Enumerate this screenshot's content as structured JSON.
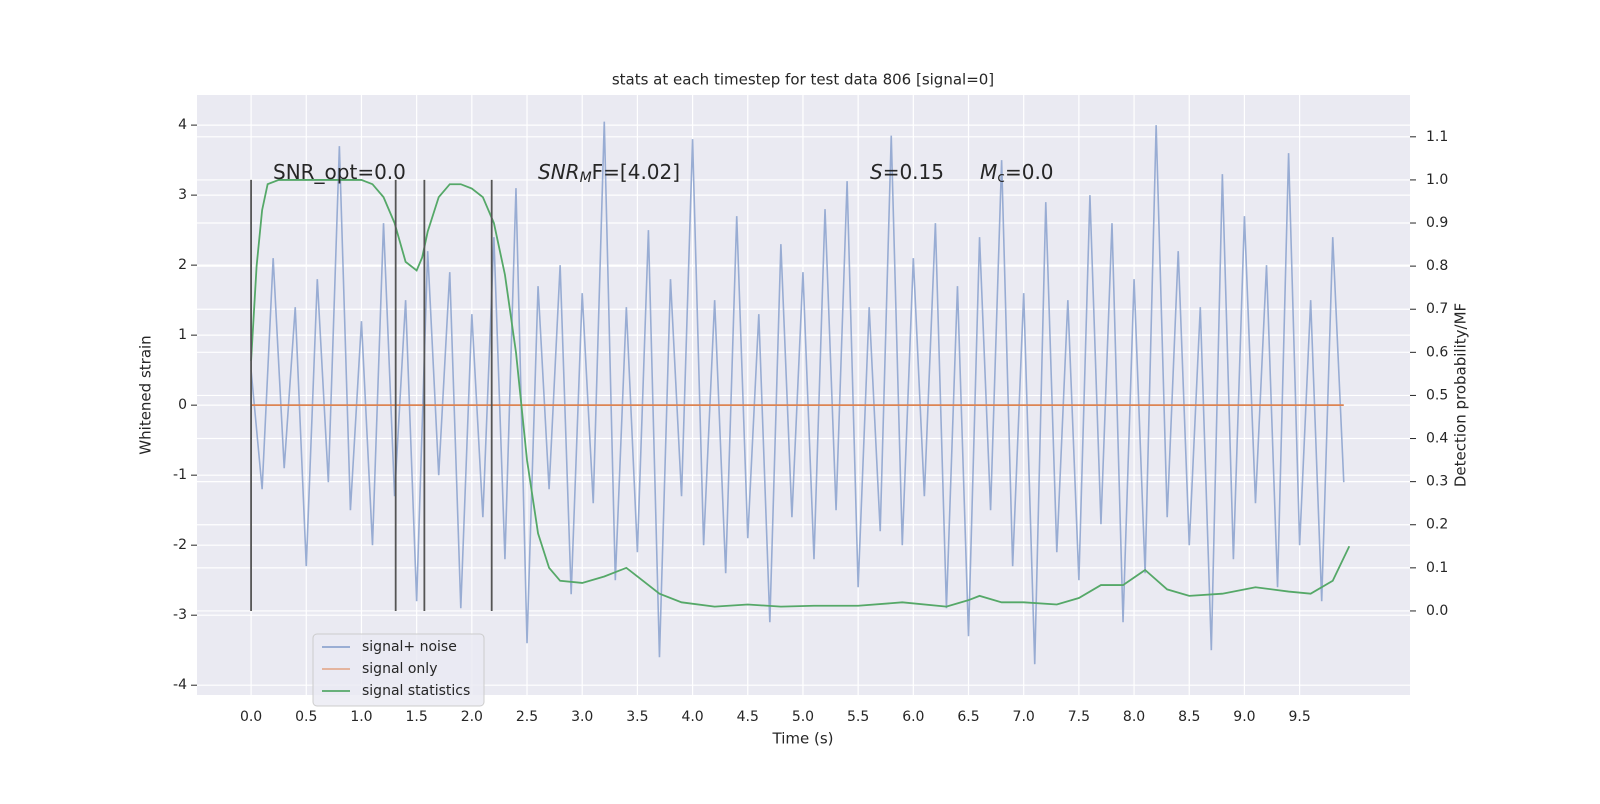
{
  "chart_data": {
    "type": "line",
    "title": "stats at each timestep for test data 806 [signal=0]",
    "xlabel": "Time (s)",
    "ylabel": "Whitened strain",
    "y2label": "Detection probability/MF",
    "xlim": [
      -0.49,
      10.5
    ],
    "ylim": [
      -4.14,
      4.43
    ],
    "y2lim": [
      -0.195,
      1.197
    ],
    "xticks": [
      {
        "value": 0,
        "label": "0.0"
      },
      0.5,
      {
        "value": 1,
        "label": "1.0"
      },
      1.5,
      {
        "value": 2,
        "label": "2.0"
      },
      2.5,
      {
        "value": 3,
        "label": "3.0"
      },
      3.5,
      {
        "value": 4,
        "label": "4.0"
      },
      4.5,
      {
        "value": 5,
        "label": "5.0"
      },
      5.5,
      {
        "value": 6,
        "label": "6.0"
      },
      6.5,
      {
        "value": 7,
        "label": "7.0"
      },
      7.5,
      {
        "value": 8,
        "label": "8.0"
      },
      8.5,
      {
        "value": 9,
        "label": "9.0"
      },
      9.5
    ],
    "yticks": [
      -4,
      -3,
      -2,
      -1,
      0,
      1,
      2,
      3,
      4
    ],
    "y2ticks": [
      {
        "value": 0,
        "label": "0.0"
      },
      0.1,
      0.2,
      0.3,
      0.4,
      0.5,
      0.6,
      0.7,
      0.8,
      0.9,
      {
        "value": 1,
        "label": "1.0"
      },
      1.1
    ],
    "grid": true,
    "legend": "lower left",
    "annotations": [
      [
        "SNR_opt=0.0"
      ],
      [
        "SNR",
        "M",
        "F=[4.02]"
      ],
      [
        "S",
        "=0.15"
      ],
      [
        "M",
        "c",
        "=0.0"
      ]
    ],
    "vlines": [
      0,
      1.31,
      1.57,
      2.18
    ],
    "vline_color": "#555555",
    "series": [
      {
        "name": "signal+ noise",
        "color": "#8fa5cf",
        "x": [
          0,
          0.1,
          0.2,
          0.3,
          0.4,
          0.5,
          0.6,
          0.7,
          0.8,
          0.9,
          1,
          1.1,
          1.2,
          1.3,
          1.4,
          1.5,
          1.6,
          1.7,
          1.8,
          1.9,
          2,
          2.1,
          2.2,
          2.3,
          2.4,
          2.5,
          2.6,
          2.7,
          2.8,
          2.9,
          3,
          3.1,
          3.2,
          3.3,
          3.4,
          3.5,
          3.6,
          3.7,
          3.8,
          3.9,
          4,
          4.1,
          4.2,
          4.3,
          4.4,
          4.5,
          4.6,
          4.7,
          4.8,
          4.9,
          5,
          5.1,
          5.2,
          5.3,
          5.4,
          5.5,
          5.6,
          5.7,
          5.8,
          5.9,
          6,
          6.1,
          6.2,
          6.3,
          6.4,
          6.5,
          6.6,
          6.7,
          6.8,
          6.9,
          7,
          7.1,
          7.2,
          7.3,
          7.4,
          7.5,
          7.6,
          7.7,
          7.8,
          7.9,
          8,
          8.1,
          8.2,
          8.3,
          8.4,
          8.5,
          8.6,
          8.7,
          8.8,
          8.9,
          9,
          9.1,
          9.2,
          9.3,
          9.4,
          9.5,
          9.6,
          9.7,
          9.8,
          9.9
        ],
        "values": [
          0.5,
          -1.2,
          2.1,
          -0.9,
          1.4,
          -2.3,
          1.8,
          -1.1,
          3.7,
          -1.5,
          1.2,
          -2.0,
          2.6,
          -1.3,
          1.5,
          -2.8,
          2.2,
          -1.0,
          1.9,
          -2.9,
          1.3,
          -1.6,
          2.4,
          -2.2,
          3.1,
          -3.4,
          1.7,
          -1.2,
          2.0,
          -2.7,
          1.6,
          -1.4,
          4.05,
          -2.5,
          1.4,
          -2.1,
          2.5,
          -3.6,
          1.8,
          -1.3,
          3.8,
          -2.0,
          1.5,
          -2.4,
          2.7,
          -1.9,
          1.3,
          -3.1,
          2.3,
          -1.6,
          1.9,
          -2.2,
          2.8,
          -1.5,
          3.2,
          -2.6,
          1.4,
          -1.8,
          3.85,
          -2.0,
          2.1,
          -1.3,
          2.6,
          -2.9,
          1.7,
          -3.3,
          2.4,
          -1.5,
          3.5,
          -2.3,
          1.6,
          -3.7,
          2.9,
          -2.1,
          1.5,
          -2.5,
          3.0,
          -1.7,
          2.6,
          -3.1,
          1.8,
          -2.4,
          4.0,
          -1.6,
          2.2,
          -2.0,
          1.4,
          -3.5,
          3.3,
          -2.2,
          2.7,
          -1.4,
          2.0,
          -2.6,
          3.6,
          -2.0,
          1.5,
          -2.8,
          2.4,
          -1.1
        ]
      },
      {
        "name": "signal only",
        "color": "#dd8452",
        "x": [
          0,
          9.9
        ],
        "values": [
          0,
          0
        ]
      },
      {
        "name": "signal statistics",
        "color": "#55a868",
        "axis": "y2",
        "x": [
          0,
          0.05,
          0.1,
          0.15,
          0.25,
          0.5,
          0.8,
          1.0,
          1.1,
          1.2,
          1.3,
          1.4,
          1.5,
          1.55,
          1.6,
          1.7,
          1.8,
          1.9,
          2.0,
          2.1,
          2.2,
          2.3,
          2.4,
          2.5,
          2.6,
          2.7,
          2.8,
          3.0,
          3.2,
          3.4,
          3.5,
          3.7,
          3.9,
          4.2,
          4.5,
          4.8,
          5.1,
          5.5,
          5.9,
          6.3,
          6.5,
          6.6,
          6.8,
          7.0,
          7.3,
          7.5,
          7.7,
          7.9,
          8.1,
          8.3,
          8.5,
          8.8,
          9.1,
          9.4,
          9.6,
          9.8,
          9.95
        ],
        "values": [
          0.58,
          0.8,
          0.93,
          0.99,
          1.0,
          1.0,
          1.0,
          1.0,
          0.99,
          0.96,
          0.9,
          0.81,
          0.79,
          0.82,
          0.88,
          0.96,
          0.99,
          0.99,
          0.98,
          0.96,
          0.9,
          0.78,
          0.6,
          0.35,
          0.18,
          0.1,
          0.07,
          0.065,
          0.08,
          0.1,
          0.08,
          0.04,
          0.02,
          0.01,
          0.015,
          0.01,
          0.012,
          0.012,
          0.02,
          0.01,
          0.025,
          0.035,
          0.02,
          0.02,
          0.015,
          0.03,
          0.06,
          0.06,
          0.095,
          0.05,
          0.035,
          0.04,
          0.055,
          0.045,
          0.04,
          0.07,
          0.15
        ]
      }
    ]
  }
}
